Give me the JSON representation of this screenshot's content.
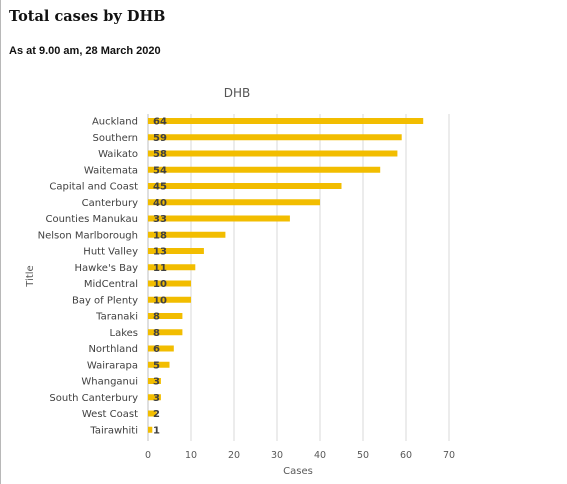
{
  "header": {
    "title": "Total cases by DHB",
    "subtitle": "As at 9.00 am, 28 March 2020"
  },
  "chart_data": {
    "type": "bar",
    "orientation": "horizontal",
    "title": "DHB",
    "xlabel": "Cases",
    "ylabel": "Title",
    "xlim": [
      0,
      70
    ],
    "xticks": [
      0,
      10,
      20,
      30,
      40,
      50,
      60,
      70
    ],
    "grid": true,
    "legend": "none",
    "bar_color": "#f2bd00",
    "categories": [
      "Auckland",
      "Southern",
      "Waikato",
      "Waitemata",
      "Capital and Coast",
      "Canterbury",
      "Counties Manukau",
      "Nelson Marlborough",
      "Hutt Valley",
      "Hawke's Bay",
      "MidCentral",
      "Bay of Plenty",
      "Taranaki",
      "Lakes",
      "Northland",
      "Wairarapa",
      "Whanganui",
      "South Canterbury",
      "West Coast",
      "Tairawhiti"
    ],
    "values": [
      64,
      59,
      58,
      54,
      45,
      40,
      33,
      18,
      13,
      11,
      10,
      10,
      8,
      8,
      6,
      5,
      3,
      3,
      2,
      1
    ]
  }
}
